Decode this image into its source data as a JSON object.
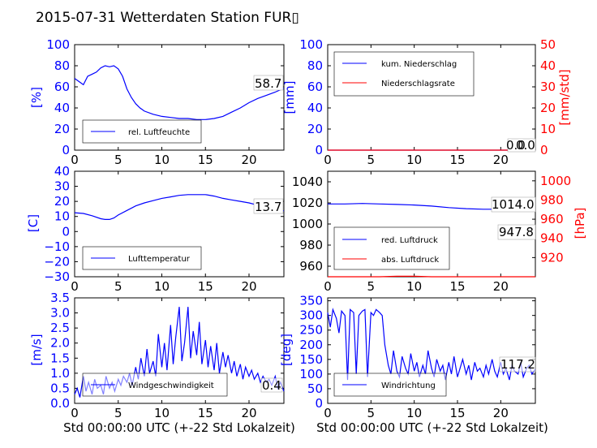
{
  "title": "2015-07-31 Wetterdaten Station FUR▯",
  "xlabel": "Std 00:00:00 UTC (+-22 Std Lokalzeit)",
  "colors": {
    "left_axis": "#0000ff",
    "right_axis": "#ff0000",
    "line1": "#0000ff",
    "line2": "#ff0000"
  },
  "chart_data": [
    {
      "type": "line",
      "panel": "humidity",
      "ylabel": "[%]",
      "xlim": [
        0,
        24
      ],
      "ylim": [
        0,
        100
      ],
      "xticks": [
        "0",
        "5",
        "10",
        "15",
        "20"
      ],
      "yticks": [
        "0",
        "20",
        "40",
        "60",
        "80",
        "100"
      ],
      "last_value": "58.7",
      "legend": [
        "rel. Luftfeuchte"
      ],
      "legend_position": "lower-left",
      "series": [
        {
          "name": "rel. Luftfeuchte",
          "x": [
            0,
            0.5,
            1,
            1.5,
            2,
            2.5,
            3,
            3.5,
            4,
            4.5,
            5,
            5.5,
            6,
            6.5,
            7,
            7.5,
            8,
            9,
            10,
            11,
            12,
            13,
            14,
            15,
            16,
            17,
            18,
            19,
            20,
            21,
            22,
            23,
            24
          ],
          "y": [
            68,
            65,
            62,
            70,
            72,
            74,
            78,
            80,
            79,
            80,
            77,
            70,
            58,
            50,
            44,
            40,
            37,
            34,
            32,
            31,
            30,
            30,
            29,
            29,
            30,
            32,
            36,
            40,
            45,
            49,
            52,
            55,
            58.7
          ]
        }
      ]
    },
    {
      "type": "line",
      "panel": "precipitation",
      "ylabel": "[mm]",
      "ylabel_right": "[mm/std]",
      "xlim": [
        0,
        24
      ],
      "ylim": [
        0,
        100
      ],
      "ylim_right": [
        0,
        50
      ],
      "xticks": [
        "0",
        "5",
        "10",
        "15",
        "20"
      ],
      "yticks": [
        "0",
        "20",
        "40",
        "60",
        "80",
        "100"
      ],
      "yticks_right": [
        "0",
        "10",
        "20",
        "30",
        "40",
        "50"
      ],
      "last_value": "0.0",
      "last_value2": "0.0",
      "legend": [
        "kum. Niederschlag",
        "Niederschlagsrate"
      ],
      "legend_position": "upper-left",
      "series": [
        {
          "name": "kum. Niederschlag",
          "x": [
            0,
            24
          ],
          "y": [
            0,
            0
          ]
        },
        {
          "name": "Niederschlagsrate",
          "x": [
            0,
            24
          ],
          "y": [
            0,
            0
          ]
        }
      ]
    },
    {
      "type": "line",
      "panel": "temperature",
      "ylabel": "[C]",
      "xlim": [
        0,
        24
      ],
      "ylim": [
        -30,
        40
      ],
      "xticks": [
        "0",
        "5",
        "10",
        "15",
        "20"
      ],
      "yticks": [
        "−30",
        "−20",
        "−10",
        "0",
        "10",
        "20",
        "30",
        "40"
      ],
      "last_value": "13.7",
      "legend": [
        "Lufttemperatur"
      ],
      "legend_position": "lower-left",
      "series": [
        {
          "name": "Lufttemperatur",
          "x": [
            0,
            1,
            2,
            3,
            3.5,
            4,
            4.5,
            5,
            6,
            7,
            8,
            9,
            10,
            11,
            12,
            13,
            14,
            15,
            16,
            17,
            18,
            19,
            20,
            21,
            22,
            23,
            24
          ],
          "y": [
            12.5,
            12,
            10.5,
            8.5,
            8,
            8,
            9,
            11,
            14,
            17,
            19,
            20.5,
            22,
            23,
            24,
            24.5,
            24.5,
            24.5,
            23.5,
            22,
            21,
            20,
            19,
            17.5,
            16,
            15,
            13.7
          ]
        }
      ]
    },
    {
      "type": "line",
      "panel": "pressure",
      "ylabel_right": "[hPa]",
      "xlim": [
        0,
        24
      ],
      "ylim": [
        950,
        1050
      ],
      "ylim_right": [
        900,
        1010
      ],
      "xticks": [
        "0",
        "5",
        "10",
        "15",
        "20"
      ],
      "yticks": [
        "960",
        "980",
        "1000",
        "1020",
        "1040"
      ],
      "yticks_right": [
        "920",
        "940",
        "960",
        "980",
        "1000"
      ],
      "last_value": "1014.0",
      "last_value2": "947.8",
      "legend": [
        "red. Luftdruck",
        "abs. Luftdruck"
      ],
      "legend_position": "lower-left",
      "series": [
        {
          "name": "red. Luftdruck",
          "x": [
            0,
            2,
            4,
            6,
            8,
            10,
            12,
            14,
            16,
            18,
            20,
            22,
            24
          ],
          "y": [
            1019,
            1019,
            1019.5,
            1019,
            1018.5,
            1018,
            1017,
            1015.5,
            1014.5,
            1014,
            1014,
            1014,
            1014
          ]
        },
        {
          "name": "abs. Luftdruck",
          "x": [
            0,
            2,
            4,
            6,
            8,
            10,
            12,
            14,
            16,
            18,
            20,
            22,
            24
          ],
          "y": [
            950,
            950,
            950,
            950,
            950.5,
            950.5,
            950,
            949.5,
            949,
            948.5,
            948,
            948,
            947.8
          ]
        }
      ]
    },
    {
      "type": "line",
      "panel": "windspeed",
      "ylabel": "[m/s]",
      "xlim": [
        0,
        24
      ],
      "ylim": [
        0,
        3.5
      ],
      "xticks": [
        "0",
        "5",
        "10",
        "15",
        "20"
      ],
      "yticks": [
        "0.0",
        "0.5",
        "1.0",
        "1.5",
        "2.0",
        "2.5",
        "3.0",
        "3.5"
      ],
      "last_value": "0.4",
      "legend": [
        "Windgeschwindigkeit"
      ],
      "legend_position": "lower-left",
      "series": [
        {
          "name": "Windgeschwindigkeit",
          "x": [
            0,
            0.3,
            0.6,
            1,
            1.3,
            1.6,
            2,
            2.3,
            2.6,
            3,
            3.3,
            3.6,
            4,
            4.3,
            4.6,
            5,
            5.3,
            5.6,
            6,
            6.3,
            6.6,
            7,
            7.3,
            7.6,
            8,
            8.3,
            8.6,
            9,
            9.3,
            9.6,
            10,
            10.3,
            10.6,
            11,
            11.3,
            11.6,
            12,
            12.3,
            12.6,
            13,
            13.3,
            13.6,
            14,
            14.3,
            14.6,
            15,
            15.3,
            15.6,
            16,
            16.3,
            16.6,
            17,
            17.3,
            17.6,
            18,
            18.3,
            18.6,
            19,
            19.3,
            19.6,
            20,
            20.3,
            20.6,
            21,
            21.3,
            21.6,
            22,
            22.3,
            22.6,
            23,
            23.3,
            23.6,
            24
          ],
          "y": [
            0.3,
            0.5,
            0.2,
            0.9,
            0.4,
            0.7,
            0.3,
            0.8,
            0.5,
            0.6,
            0.3,
            0.9,
            0.5,
            0.7,
            0.4,
            0.8,
            0.6,
            0.9,
            0.7,
            1.0,
            0.6,
            1.2,
            0.8,
            1.5,
            0.9,
            1.8,
            1.0,
            1.4,
            0.9,
            2.3,
            1.2,
            2.0,
            1.1,
            2.6,
            1.3,
            2.2,
            3.2,
            1.4,
            2.0,
            3.2,
            1.5,
            2.4,
            1.6,
            2.7,
            1.3,
            2.1,
            1.2,
            1.9,
            1.1,
            2.0,
            1.0,
            1.7,
            1.2,
            1.6,
            1.0,
            1.4,
            0.9,
            1.3,
            0.8,
            1.2,
            0.9,
            1.1,
            0.8,
            1.0,
            0.7,
            0.9,
            0.7,
            0.8,
            0.6,
            0.9,
            0.5,
            0.7,
            0.4
          ]
        }
      ]
    },
    {
      "type": "line",
      "panel": "winddirection",
      "ylabel": "[deg]",
      "xlim": [
        0,
        24
      ],
      "ylim": [
        0,
        360
      ],
      "xticks": [
        "0",
        "5",
        "10",
        "15",
        "20"
      ],
      "yticks": [
        "0",
        "50",
        "100",
        "150",
        "200",
        "250",
        "300",
        "350"
      ],
      "last_value": "117.2",
      "legend": [
        "Windrichtung"
      ],
      "legend_position": "lower-left",
      "series": [
        {
          "name": "Windrichtung",
          "x": [
            0,
            0.3,
            0.6,
            1,
            1.3,
            1.6,
            2,
            2.3,
            2.6,
            3,
            3.3,
            3.6,
            4,
            4.3,
            4.6,
            5,
            5.3,
            5.6,
            6,
            6.3,
            6.6,
            7,
            7.3,
            7.6,
            8,
            8.3,
            8.6,
            9,
            9.3,
            9.6,
            10,
            10.3,
            10.6,
            11,
            11.3,
            11.6,
            12,
            12.3,
            12.6,
            13,
            13.3,
            13.6,
            14,
            14.3,
            14.6,
            15,
            15.3,
            15.6,
            16,
            16.3,
            16.6,
            17,
            17.3,
            17.6,
            18,
            18.3,
            18.6,
            19,
            19.3,
            19.6,
            20,
            20.3,
            20.6,
            21,
            21.3,
            21.6,
            22,
            22.3,
            22.6,
            23,
            23.3,
            23.6,
            24
          ],
          "y": [
            310,
            260,
            320,
            290,
            240,
            315,
            300,
            80,
            320,
            310,
            100,
            300,
            315,
            320,
            90,
            310,
            300,
            320,
            310,
            300,
            200,
            130,
            100,
            180,
            110,
            90,
            160,
            120,
            100,
            170,
            110,
            140,
            90,
            130,
            100,
            180,
            120,
            90,
            150,
            110,
            130,
            80,
            140,
            100,
            160,
            90,
            120,
            150,
            100,
            130,
            80,
            140,
            110,
            120,
            90,
            130,
            100,
            150,
            110,
            90,
            140,
            100,
            120,
            80,
            130,
            110,
            100,
            140,
            90,
            120,
            130,
            100,
            117.2
          ]
        }
      ]
    }
  ]
}
